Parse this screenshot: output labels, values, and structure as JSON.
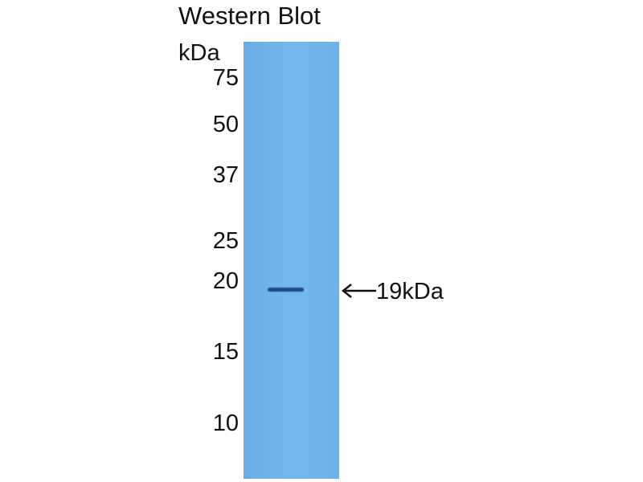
{
  "title": "Western Blot",
  "unit": "kDa",
  "markers": [
    {
      "label": "75",
      "kda": 75
    },
    {
      "label": "50",
      "kda": 50
    },
    {
      "label": "37",
      "kda": 37
    },
    {
      "label": "25",
      "kda": 25
    },
    {
      "label": "20",
      "kda": 20
    },
    {
      "label": "15",
      "kda": 15
    },
    {
      "label": "10",
      "kda": 10
    }
  ],
  "band": {
    "label": "19kDa",
    "kda": 19,
    "color": "#1d4a86"
  },
  "lane_color": "#6fb3e8",
  "arrow_icon": "arrow-left-icon"
}
